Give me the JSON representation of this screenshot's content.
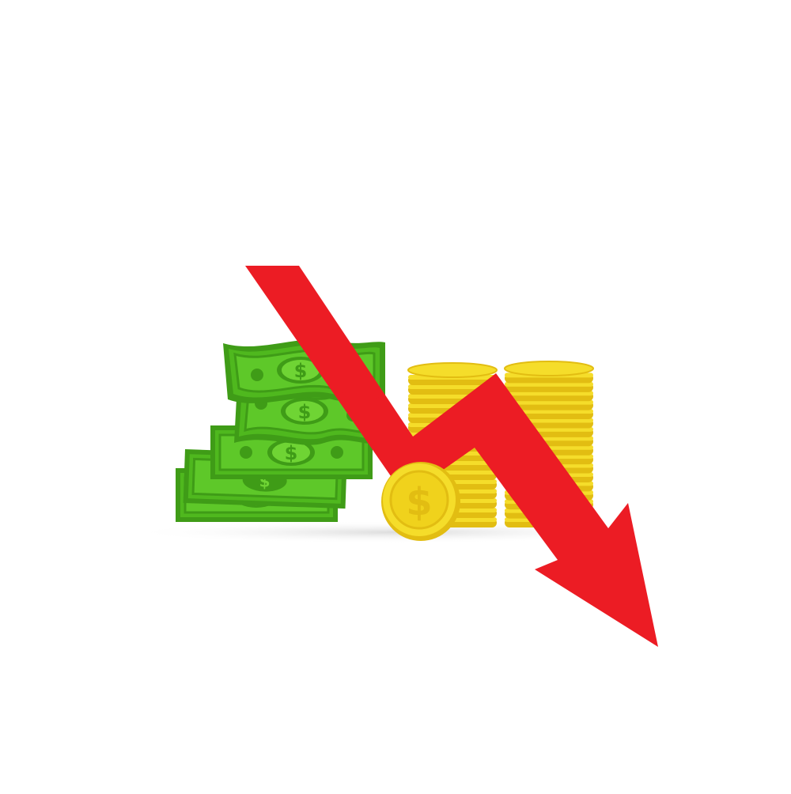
{
  "scene": {
    "description_symbol": "$",
    "icons": [
      "banknote-stack-icon",
      "coin-stack-icon",
      "coin-icon",
      "down-trend-arrow-icon"
    ],
    "colors": {
      "background": "#ffffff",
      "bill_dark": "#3f9c17",
      "bill_mid": "#4fb81e",
      "bill_light": "#6fd434",
      "coin_face": "#f5dd2a",
      "coin_edge": "#e2bd12",
      "coin_highlight": "#fff27a",
      "arrow": "#ec1c24",
      "shadow": "#e9e9e9"
    }
  }
}
